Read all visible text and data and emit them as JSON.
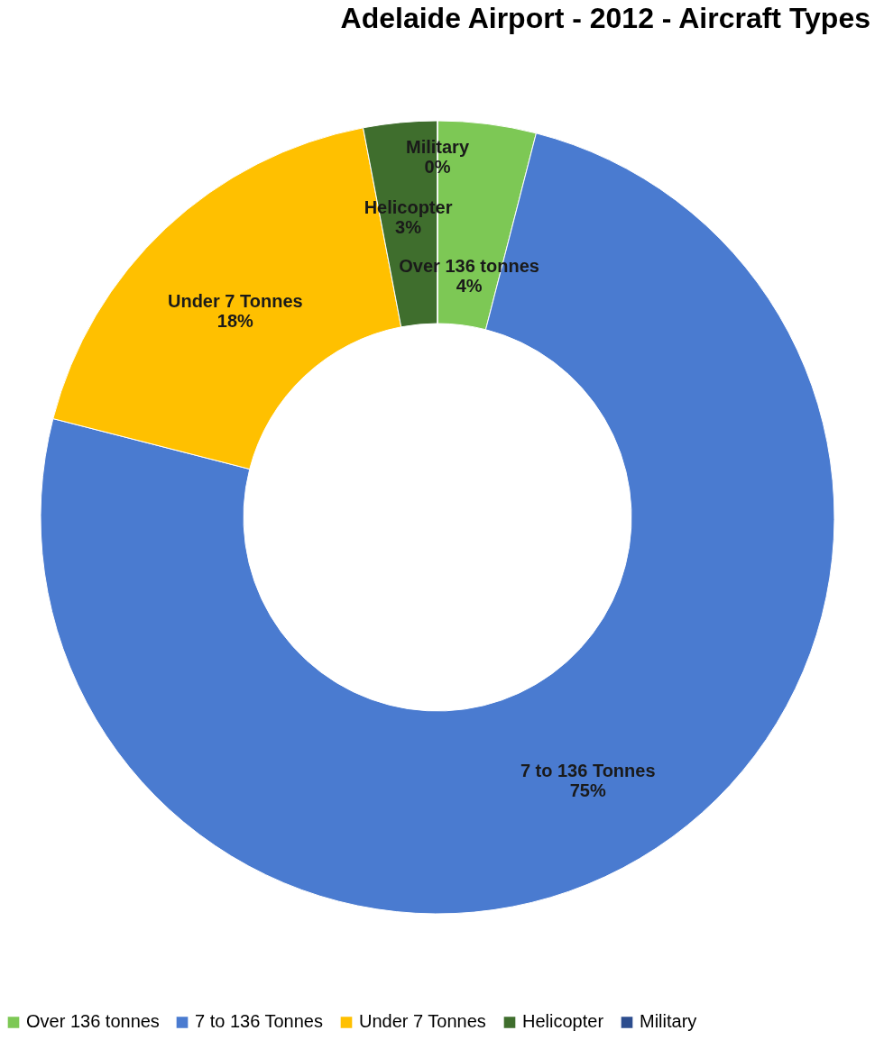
{
  "chart_data": {
    "type": "donut",
    "title": "Adelaide Airport - 2012 - Aircraft Types",
    "categories": [
      "Over 136 tonnes",
      "7 to 136 Tonnes",
      "Under 7 Tonnes",
      "Helicopter",
      "Military"
    ],
    "values": [
      4,
      75,
      18,
      3,
      0
    ],
    "value_labels": [
      "4%",
      "75%",
      "18%",
      "3%",
      "0%"
    ],
    "colors": [
      "#7dc855",
      "#4a7bd0",
      "#ffc000",
      "#3f6e2d",
      "#2c4d8e"
    ],
    "legend": "bottom"
  }
}
